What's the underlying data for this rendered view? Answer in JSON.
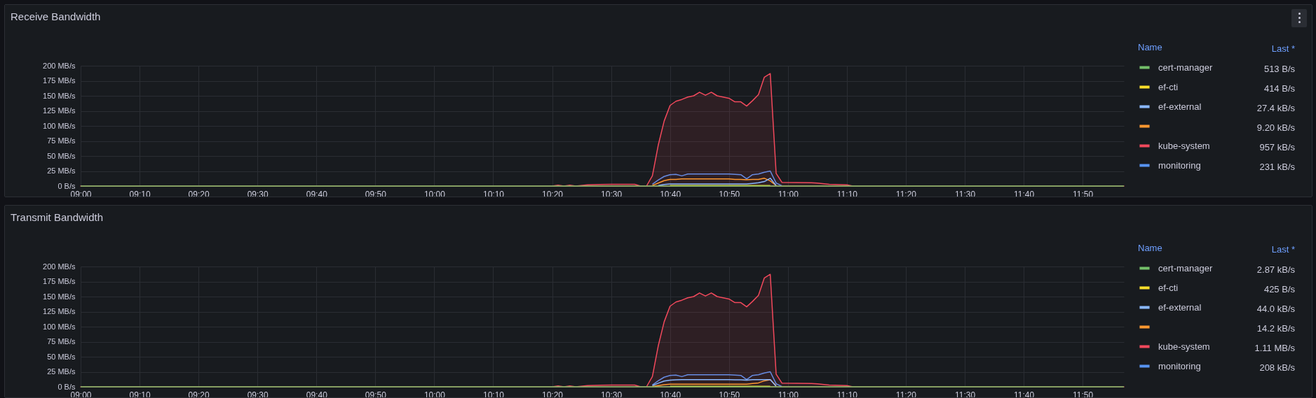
{
  "chart_data": [
    {
      "type": "line",
      "title": "Receive Bandwidth",
      "legend_title": "Name",
      "legend": "right",
      "grid": true,
      "annotations": [
        "Last *",
        "513 B/s",
        "414 B/s",
        "27.4 kB/s",
        "9.20 kB/s",
        "957 kB/s",
        "231 kB/s"
      ],
      "x": [
        9,
        10.3333,
        10.35,
        10.3667,
        10.3833,
        10.4,
        10.4333,
        10.4667,
        10.5,
        10.5667,
        10.5833,
        10.6,
        10.6167,
        10.6333,
        10.65,
        10.6667,
        10.6833,
        10.7,
        10.7167,
        10.7333,
        10.75,
        10.7667,
        10.7833,
        10.8,
        10.8167,
        10.8333,
        10.85,
        10.8667,
        10.8833,
        10.9,
        10.9167,
        10.9333,
        10.95,
        10.9667,
        10.9833,
        11.0667,
        11.0833,
        11.1167,
        11.1667,
        11.1833,
        11.95
      ],
      "xlim": [
        9,
        11.95
      ],
      "xticks": [
        {
          "value": 9,
          "label": "09:00"
        },
        {
          "value": 9.1667,
          "label": "09:10"
        },
        {
          "value": 9.3333,
          "label": "09:20"
        },
        {
          "value": 9.5,
          "label": "09:30"
        },
        {
          "value": 9.6667,
          "label": "09:40"
        },
        {
          "value": 9.8333,
          "label": "09:50"
        },
        {
          "value": 10,
          "label": "10:00"
        },
        {
          "value": 10.1667,
          "label": "10:10"
        },
        {
          "value": 10.3333,
          "label": "10:20"
        },
        {
          "value": 10.5,
          "label": "10:30"
        },
        {
          "value": 10.6667,
          "label": "10:40"
        },
        {
          "value": 10.8333,
          "label": "10:50"
        },
        {
          "value": 11,
          "label": "11:00"
        },
        {
          "value": 11.1667,
          "label": "11:10"
        },
        {
          "value": 11.3333,
          "label": "11:20"
        },
        {
          "value": 11.5,
          "label": "11:30"
        },
        {
          "value": 11.6667,
          "label": "11:40"
        },
        {
          "value": 11.8333,
          "label": "11:50"
        }
      ],
      "ylim": [
        0,
        200
      ],
      "yticks": [
        {
          "value": 0,
          "label": "0 B/s"
        },
        {
          "value": 25,
          "label": "25 MB/s"
        },
        {
          "value": 50,
          "label": "50 MB/s"
        },
        {
          "value": 75,
          "label": "75 MB/s"
        },
        {
          "value": 100,
          "label": "100 MB/s"
        },
        {
          "value": 125,
          "label": "125 MB/s"
        },
        {
          "value": 150,
          "label": "150 MB/s"
        },
        {
          "value": 175,
          "label": "175 MB/s"
        },
        {
          "value": 200,
          "label": "200 MB/s"
        }
      ],
      "series": [
        {
          "name": "cert-manager",
          "color": "#73bf69",
          "values": [
            0,
            0,
            0,
            0,
            0,
            0,
            0,
            0,
            0,
            0,
            0,
            0,
            0,
            0,
            0,
            0,
            0,
            0,
            0,
            0,
            0,
            0,
            0,
            0,
            0,
            0,
            0,
            0,
            0,
            0,
            0,
            0,
            0,
            0,
            0,
            0,
            0,
            0,
            0,
            0,
            0
          ]
        },
        {
          "name": "ef-cti",
          "color": "#fade2a",
          "values": [
            null,
            null,
            null,
            null,
            null,
            null,
            null,
            null,
            null,
            null,
            null,
            null,
            null,
            null,
            null,
            1,
            1,
            1,
            1,
            1,
            1,
            1,
            1,
            1,
            1,
            1,
            1,
            1,
            1,
            1,
            1,
            1,
            1,
            null,
            null,
            null,
            null,
            null,
            null,
            null,
            null
          ]
        },
        {
          "name": "ef-external",
          "color": "#8ab8ff",
          "values": [
            null,
            null,
            null,
            null,
            null,
            null,
            null,
            null,
            null,
            null,
            null,
            null,
            null,
            1,
            2.5,
            3.5,
            3.5,
            3.5,
            3.5,
            3.5,
            3.5,
            3.5,
            3.5,
            3.5,
            3.5,
            3.5,
            3.5,
            3.5,
            3.5,
            4.5,
            5.5,
            7.5,
            13,
            1,
            null,
            null,
            null,
            null,
            null,
            null,
            null
          ]
        },
        {
          "color": "#ff9830",
          "values": [
            null,
            null,
            null,
            null,
            null,
            null,
            null,
            null,
            null,
            null,
            null,
            null,
            1,
            5,
            9,
            11,
            11,
            12,
            12,
            12,
            12,
            12,
            12,
            12,
            12,
            12,
            11,
            11,
            10.5,
            11,
            11,
            13,
            8.5,
            1,
            null,
            null,
            null,
            null,
            null,
            null,
            null
          ]
        },
        {
          "name": "kube-system",
          "type": "area",
          "color": "#f2495c",
          "values": [
            0,
            0,
            1.5,
            0,
            1.5,
            0,
            2,
            2.5,
            3,
            3,
            0,
            0,
            17,
            68,
            108,
            134,
            141,
            144,
            148,
            150,
            156,
            151,
            156,
            150,
            148,
            146,
            140,
            140,
            133,
            142,
            152,
            181,
            187,
            21,
            6,
            5.5,
            5,
            3,
            2,
            0,
            0
          ]
        },
        {
          "name": "monitoring",
          "color": "#5794f2",
          "values": [
            null,
            null,
            null,
            null,
            null,
            null,
            null,
            null,
            null,
            null,
            null,
            null,
            3,
            10,
            16,
            19,
            19.5,
            17,
            20,
            20,
            20,
            20,
            20,
            20,
            20,
            20,
            19.5,
            19,
            12,
            19,
            20,
            23,
            25,
            5,
            0.5,
            null,
            null,
            null,
            null,
            null,
            null
          ]
        }
      ]
    },
    {
      "type": "line",
      "title": "Transmit Bandwidth",
      "legend_title": "Name",
      "legend": "right",
      "grid": true,
      "annotations": [
        "Last *",
        "2.87 kB/s",
        "425 B/s",
        "44.0 kB/s",
        "14.2 kB/s",
        "1.11 MB/s",
        "208 kB/s"
      ],
      "x": [
        9,
        10.3333,
        10.35,
        10.3667,
        10.3833,
        10.4,
        10.4333,
        10.4667,
        10.5,
        10.5667,
        10.5833,
        10.6,
        10.6167,
        10.6333,
        10.65,
        10.6667,
        10.6833,
        10.7,
        10.7167,
        10.7333,
        10.75,
        10.7667,
        10.7833,
        10.8,
        10.8167,
        10.8333,
        10.85,
        10.8667,
        10.8833,
        10.9,
        10.9167,
        10.9333,
        10.95,
        10.9667,
        10.9833,
        11.0667,
        11.0833,
        11.1167,
        11.1667,
        11.1833,
        11.95
      ],
      "xlim": [
        9,
        11.95
      ],
      "xticks": [
        {
          "value": 9,
          "label": "09:00"
        },
        {
          "value": 9.1667,
          "label": "09:10"
        },
        {
          "value": 9.3333,
          "label": "09:20"
        },
        {
          "value": 9.5,
          "label": "09:30"
        },
        {
          "value": 9.6667,
          "label": "09:40"
        },
        {
          "value": 9.8333,
          "label": "09:50"
        },
        {
          "value": 10,
          "label": "10:00"
        },
        {
          "value": 10.1667,
          "label": "10:10"
        },
        {
          "value": 10.3333,
          "label": "10:20"
        },
        {
          "value": 10.5,
          "label": "10:30"
        },
        {
          "value": 10.6667,
          "label": "10:40"
        },
        {
          "value": 10.8333,
          "label": "10:50"
        },
        {
          "value": 11,
          "label": "11:00"
        },
        {
          "value": 11.1667,
          "label": "11:10"
        },
        {
          "value": 11.3333,
          "label": "11:20"
        },
        {
          "value": 11.5,
          "label": "11:30"
        },
        {
          "value": 11.6667,
          "label": "11:40"
        },
        {
          "value": 11.8333,
          "label": "11:50"
        }
      ],
      "ylim": [
        0,
        200
      ],
      "yticks": [
        {
          "value": 0,
          "label": "0 B/s"
        },
        {
          "value": 25,
          "label": "25 MB/s"
        },
        {
          "value": 50,
          "label": "50 MB/s"
        },
        {
          "value": 75,
          "label": "75 MB/s"
        },
        {
          "value": 100,
          "label": "100 MB/s"
        },
        {
          "value": 125,
          "label": "125 MB/s"
        },
        {
          "value": 150,
          "label": "150 MB/s"
        },
        {
          "value": 175,
          "label": "175 MB/s"
        },
        {
          "value": 200,
          "label": "200 MB/s"
        }
      ],
      "series": [
        {
          "name": "cert-manager",
          "color": "#73bf69",
          "values": [
            0,
            0,
            0,
            0,
            0,
            0,
            0,
            0,
            0,
            0,
            0,
            0,
            0,
            0,
            0,
            0,
            0,
            0,
            0,
            0,
            0,
            0,
            0,
            0,
            0,
            0,
            0,
            0,
            0,
            0,
            0,
            0,
            0,
            0,
            0,
            0,
            0,
            0,
            0,
            0,
            0
          ]
        },
        {
          "name": "ef-cti",
          "color": "#fade2a",
          "values": [
            null,
            null,
            null,
            null,
            null,
            null,
            null,
            null,
            null,
            null,
            null,
            null,
            null,
            null,
            null,
            1,
            1,
            1,
            1,
            1,
            1,
            1,
            1,
            1,
            1,
            1,
            1,
            1,
            1,
            1,
            1,
            1,
            1,
            null,
            null,
            null,
            null,
            null,
            null,
            null,
            null
          ]
        },
        {
          "name": "ef-external",
          "color": "#8ab8ff",
          "values": [
            null,
            null,
            null,
            null,
            null,
            null,
            null,
            null,
            null,
            null,
            null,
            null,
            2,
            6,
            9.5,
            11,
            11.5,
            12,
            12,
            12,
            12,
            12,
            12,
            12,
            12,
            12,
            11.5,
            11.5,
            11,
            12,
            12,
            12,
            12,
            1,
            null,
            null,
            null,
            null,
            null,
            null,
            null
          ]
        },
        {
          "color": "#ff9830",
          "values": [
            null,
            null,
            null,
            null,
            null,
            null,
            null,
            null,
            null,
            null,
            null,
            null,
            0.5,
            2,
            3.5,
            4.5,
            4.5,
            4.5,
            4.5,
            4.5,
            4.5,
            4.5,
            4.5,
            4.5,
            4.5,
            4.5,
            4.5,
            4.5,
            4.5,
            5.5,
            6.5,
            10,
            12,
            2,
            null,
            null,
            null,
            null,
            null,
            null,
            null
          ]
        },
        {
          "name": "kube-system",
          "type": "area",
          "color": "#f2495c",
          "values": [
            0,
            0,
            1.5,
            0,
            1.5,
            0,
            2,
            2.5,
            3,
            3,
            0,
            0,
            17,
            68,
            108,
            134,
            141,
            144,
            148,
            150,
            156,
            151,
            156,
            150,
            148,
            146,
            140,
            140,
            133,
            142,
            152,
            181,
            187,
            21,
            6,
            5.5,
            5,
            3,
            2,
            0,
            0
          ]
        },
        {
          "name": "monitoring",
          "color": "#5794f2",
          "values": [
            null,
            null,
            null,
            null,
            null,
            null,
            null,
            null,
            null,
            null,
            null,
            null,
            3,
            10,
            16,
            19,
            19.5,
            17,
            20,
            20,
            20,
            20,
            20,
            20,
            20,
            20,
            19.5,
            19,
            12,
            19,
            20,
            23,
            25,
            5,
            0.5,
            null,
            null,
            null,
            null,
            null,
            null
          ]
        }
      ]
    }
  ]
}
